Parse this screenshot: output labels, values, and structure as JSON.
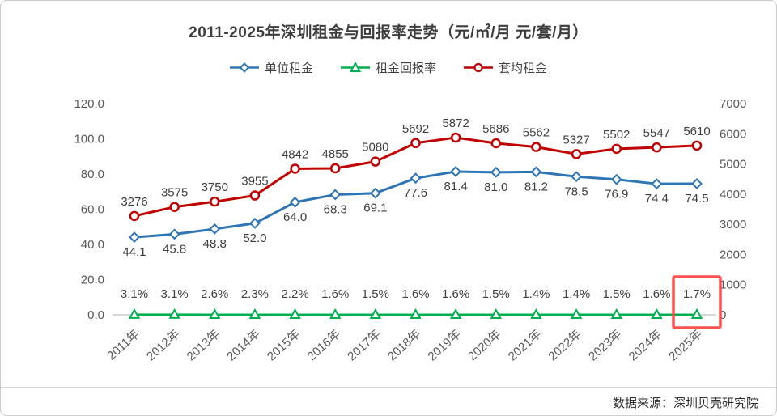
{
  "title": "2011-2025年深圳租金与回报率走势（元/㎡/月  元/套/月）",
  "source": "数据来源：深圳贝壳研究院",
  "legend": [
    {
      "label": "单位租金",
      "color": "#2E75B6",
      "marker": "diamond"
    },
    {
      "label": "租金回报率",
      "color": "#00B050",
      "marker": "triangle"
    },
    {
      "label": "套均租金",
      "color": "#C00000",
      "marker": "circle"
    }
  ],
  "chart_data": {
    "type": "line",
    "title": "2011-2025年深圳租金与回报率走势（元/㎡/月  元/套/月）",
    "categories": [
      "2011年",
      "2012年",
      "2013年",
      "2014年",
      "2015年",
      "2016年",
      "2017年",
      "2018年",
      "2019年",
      "2020年",
      "2021年",
      "2022年",
      "2023年",
      "2024年",
      "2025年"
    ],
    "series": [
      {
        "id": "unit-rent",
        "name": "单位租金",
        "axis": "left",
        "marker": "diamond",
        "color": "#2E75B6",
        "label_format": "fixed1",
        "values": [
          44.1,
          45.8,
          48.8,
          52.0,
          64.0,
          68.3,
          69.1,
          77.6,
          81.4,
          81.0,
          81.2,
          78.5,
          76.9,
          74.4,
          74.5
        ]
      },
      {
        "id": "rental-yield",
        "name": "租金回报率",
        "axis": "left",
        "unit": "%",
        "marker": "triangle",
        "color": "#00B050",
        "values": [
          3.1,
          3.1,
          2.6,
          2.3,
          2.2,
          1.6,
          1.5,
          1.6,
          1.6,
          1.5,
          1.4,
          1.4,
          1.5,
          1.6,
          1.7
        ]
      },
      {
        "id": "avg-unit-rent",
        "name": "套均租金",
        "axis": "right",
        "marker": "circle",
        "color": "#C00000",
        "label_format": "int",
        "values": [
          3276,
          3575,
          3750,
          3955,
          4842,
          4855,
          5080,
          5692,
          5872,
          5686,
          5562,
          5327,
          5502,
          5547,
          5610
        ]
      }
    ],
    "left_axis": {
      "min": 0,
      "max": 120,
      "tick_labels": [
        "0.0",
        "20.0",
        "40.0",
        "60.0",
        "80.0",
        "100.0",
        "120.0"
      ]
    },
    "right_axis": {
      "min": 0,
      "max": 7000,
      "tick_labels": [
        "0",
        "1000",
        "2000",
        "3000",
        "4000",
        "5000",
        "6000",
        "7000"
      ]
    },
    "legend_position": "top",
    "grid": false,
    "annotation": {
      "target": "租金回报率",
      "point": "2025年",
      "label": "1.7%",
      "style": "red-box",
      "color": "#FB5151"
    }
  }
}
